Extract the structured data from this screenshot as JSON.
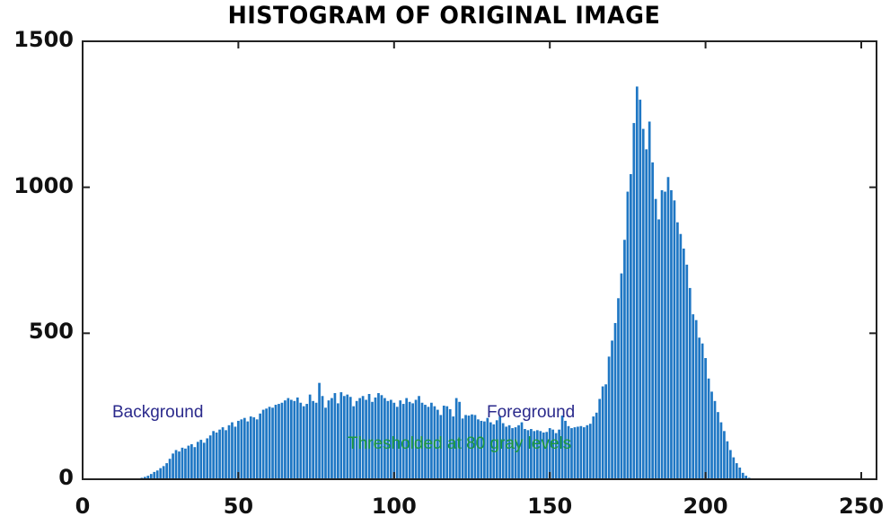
{
  "chart_data": {
    "type": "bar",
    "title": "HISTOGRAM OF ORIGINAL IMAGE",
    "xlabel": "",
    "ylabel": "",
    "xlim": [
      0,
      255
    ],
    "ylim": [
      0,
      1500
    ],
    "xticks": [
      0,
      50,
      100,
      150,
      200,
      250
    ],
    "yticks": [
      0,
      500,
      1000,
      1500
    ],
    "grid": false,
    "legend": null,
    "bar_color": "#1f77c4",
    "annotations": [
      {
        "text": "Background",
        "x": 10,
        "y": 230,
        "color": "#2b2a8c"
      },
      {
        "text": "Foreground",
        "x": 131,
        "y": 230,
        "color": "#2b2a8c"
      },
      {
        "text": "Thresholded at 80 gray levels",
        "x": 85,
        "y": 130,
        "color": "#1f9a3c"
      }
    ],
    "x_start": 18,
    "values": [
      3,
      5,
      8,
      12,
      18,
      25,
      30,
      38,
      45,
      55,
      70,
      88,
      100,
      95,
      108,
      105,
      115,
      120,
      110,
      128,
      135,
      125,
      140,
      150,
      165,
      160,
      170,
      178,
      168,
      185,
      195,
      180,
      200,
      205,
      210,
      198,
      215,
      212,
      205,
      225,
      238,
      242,
      248,
      245,
      255,
      258,
      262,
      270,
      278,
      272,
      268,
      280,
      262,
      250,
      258,
      290,
      268,
      262,
      330,
      285,
      245,
      270,
      278,
      295,
      260,
      298,
      285,
      290,
      282,
      250,
      268,
      278,
      285,
      272,
      292,
      265,
      280,
      295,
      288,
      278,
      268,
      272,
      262,
      248,
      270,
      258,
      278,
      265,
      260,
      272,
      285,
      262,
      255,
      248,
      262,
      250,
      238,
      220,
      252,
      250,
      240,
      215,
      278,
      265,
      208,
      220,
      218,
      222,
      220,
      205,
      200,
      198,
      210,
      195,
      188,
      202,
      215,
      192,
      180,
      185,
      175,
      178,
      185,
      195,
      172,
      168,
      172,
      165,
      168,
      165,
      160,
      162,
      175,
      170,
      158,
      170,
      218,
      200,
      182,
      175,
      178,
      180,
      182,
      178,
      185,
      190,
      215,
      228,
      275,
      318,
      325,
      420,
      475,
      535,
      620,
      705,
      820,
      985,
      1045,
      1220,
      1345,
      1300,
      1200,
      1130,
      1225,
      1085,
      960,
      890,
      990,
      985,
      1035,
      990,
      955,
      880,
      840,
      790,
      735,
      655,
      565,
      545,
      485,
      465,
      415,
      345,
      300,
      268,
      230,
      195,
      165,
      130,
      100,
      75,
      55,
      40,
      22,
      12,
      5
    ]
  }
}
